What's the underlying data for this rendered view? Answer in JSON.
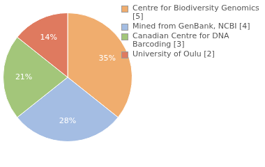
{
  "chart_data": {
    "type": "pie",
    "categories": [
      "Centre for Biodiversity Genomics [5]",
      "Mined from GenBank, NCBI [4]",
      "Canadian Centre for DNA Barcoding [3]",
      "University of Oulu [2]"
    ],
    "values": [
      35,
      28,
      21,
      14
    ],
    "value_labels": [
      "35%",
      "28%",
      "21%",
      "14%"
    ],
    "colors": [
      "#f0ad6e",
      "#a4bde3",
      "#a3c67a",
      "#df7a5f"
    ],
    "data_labels": true,
    "legend": "right"
  }
}
